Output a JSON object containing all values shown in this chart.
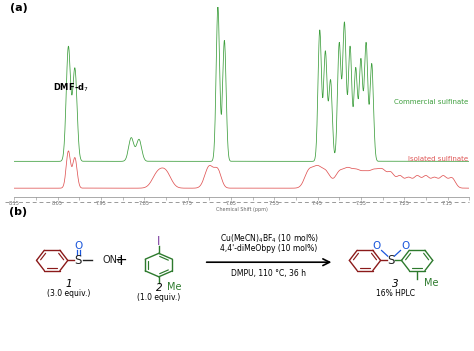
{
  "fig_width": 4.74,
  "fig_height": 3.51,
  "dpi": 100,
  "bg_color": "#ffffff",
  "panel_a_label": "(a)",
  "panel_b_label": "(b)",
  "green_color": "#3d9e3d",
  "red_color": "#e05555",
  "dark_red": "#8b1a1a",
  "dark_green": "#2d7a2d",
  "blue_color": "#1a56db",
  "purple_color": "#7c3fa0",
  "dashed_line_color": "#999999",
  "commercial_label": "Commercial sulfinate",
  "isolated_label": "Isolated sulfinate",
  "compound1_label": "1",
  "compound1_equiv": "(3.0 equiv.)",
  "compound2_label": "2",
  "compound2_equiv": "(1.0 equiv.)",
  "compound3_label": "3",
  "compound3_yield": "16% HPLC"
}
